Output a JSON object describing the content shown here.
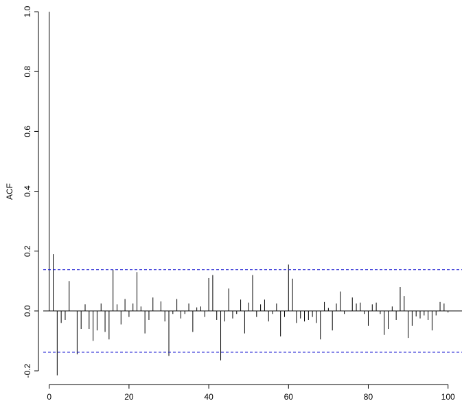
{
  "chart_data": {
    "type": "bar",
    "xlabel": "",
    "ylabel": "ACF",
    "xlim": [
      -1.5,
      103.5
    ],
    "ylim": [
      -0.232,
      1.03
    ],
    "xticks": [
      0,
      20,
      40,
      60,
      80,
      100
    ],
    "yticks": [
      -0.2,
      0.0,
      0.2,
      0.4,
      0.6,
      0.8,
      1.0
    ],
    "xtick_labels": [
      "0",
      "20",
      "40",
      "60",
      "80",
      "100"
    ],
    "ytick_labels": [
      "-0.2",
      "0.0",
      "0.2",
      "0.4",
      "0.6",
      "0.8",
      "1.0"
    ],
    "confidence_bound": 0.138,
    "bound_color": "#1010d0",
    "grid": false,
    "lags": [
      0,
      1,
      2,
      3,
      4,
      5,
      6,
      7,
      8,
      9,
      10,
      11,
      12,
      13,
      14,
      15,
      16,
      17,
      18,
      19,
      20,
      21,
      22,
      23,
      24,
      25,
      26,
      27,
      28,
      29,
      30,
      31,
      32,
      33,
      34,
      35,
      36,
      37,
      38,
      39,
      40,
      41,
      42,
      43,
      44,
      45,
      46,
      47,
      48,
      49,
      50,
      51,
      52,
      53,
      54,
      55,
      56,
      57,
      58,
      59,
      60,
      61,
      62,
      63,
      64,
      65,
      66,
      67,
      68,
      69,
      70,
      71,
      72,
      73,
      74,
      75,
      76,
      77,
      78,
      79,
      80,
      81,
      82,
      83,
      84,
      85,
      86,
      87,
      88,
      89,
      90,
      91,
      92,
      93,
      94,
      95,
      96,
      97,
      98,
      99,
      100
    ],
    "values": [
      1.0,
      0.19,
      -0.215,
      -0.04,
      -0.03,
      0.1,
      0.0,
      -0.145,
      -0.06,
      0.022,
      -0.06,
      -0.1,
      -0.065,
      0.025,
      -0.07,
      -0.095,
      0.138,
      0.022,
      -0.045,
      0.04,
      -0.02,
      0.025,
      0.13,
      0.015,
      -0.075,
      -0.03,
      0.045,
      0.0,
      0.032,
      -0.035,
      -0.15,
      -0.01,
      0.04,
      -0.025,
      -0.01,
      0.025,
      -0.07,
      0.012,
      0.015,
      -0.02,
      0.11,
      0.12,
      -0.03,
      -0.165,
      -0.035,
      0.075,
      -0.025,
      -0.01,
      0.038,
      -0.075,
      0.028,
      0.12,
      -0.02,
      0.022,
      0.038,
      -0.035,
      -0.01,
      0.025,
      -0.085,
      -0.02,
      0.155,
      0.108,
      -0.04,
      -0.025,
      -0.035,
      -0.03,
      -0.02,
      -0.04,
      -0.095,
      0.03,
      0.01,
      -0.065,
      0.025,
      0.065,
      -0.01,
      0.0,
      0.045,
      0.025,
      0.028,
      -0.01,
      -0.05,
      0.022,
      0.028,
      -0.01,
      -0.08,
      -0.06,
      0.015,
      -0.03,
      0.08,
      0.05,
      -0.09,
      -0.05,
      -0.018,
      -0.025,
      -0.015,
      -0.03,
      -0.065,
      -0.015,
      0.03,
      0.025,
      -0.005
    ]
  }
}
